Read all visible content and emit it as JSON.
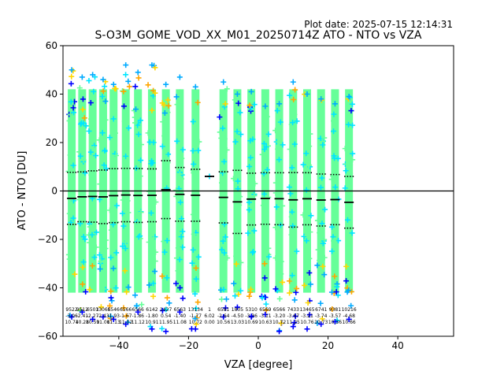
{
  "header": {
    "plot_date": "Plot date: 2025-07-15 12:14:31"
  },
  "chart_data": {
    "type": "scatter",
    "title": "S-O3M_GOME_VOD_XX_M01_20250714Z ATO - NTO vs VZA",
    "xlabel": "VZA [degree]",
    "ylabel": "ATO - NTO [DU]",
    "xlim": [
      -56,
      56
    ],
    "ylim": [
      -60,
      60
    ],
    "x_ticks": [
      -40,
      -20,
      0,
      20,
      40
    ],
    "x_tick_labels": [
      "−40",
      "−20",
      "0",
      "20",
      "40"
    ],
    "y_ticks": [
      -60,
      -40,
      -20,
      0,
      20,
      40,
      60
    ],
    "y_tick_labels": [
      "−60",
      "−40",
      "−20",
      "0",
      "20",
      "40",
      "60"
    ],
    "grid": false,
    "zero_line": 0,
    "density_colors": [
      "#0000ff",
      "#00aaff",
      "#00e5ff",
      "#66ff99",
      "#ffd700",
      "#ffa500"
    ],
    "bins": [
      {
        "vza": -53.5,
        "count": "9522",
        "mean": "-3.06",
        "std": "10.74",
        "min": -52,
        "max": 50
      },
      {
        "vza": -50.5,
        "count": "9512",
        "mean": "-2.41",
        "std": "10.28",
        "min": -50,
        "max": 47
      },
      {
        "vza": -47.5,
        "count": "6503",
        "mean": "-2.27",
        "std": "10.59",
        "min": -53,
        "max": 48
      },
      {
        "vza": -44.5,
        "count": "13065",
        "mean": "-2.43",
        "std": "11.06",
        "min": -52,
        "max": 46
      },
      {
        "vza": -41.5,
        "count": "6546",
        "mean": "-1.93",
        "std": "11.13",
        "min": -53,
        "max": 44
      },
      {
        "vza": -38.0,
        "count": "6566",
        "mean": "-1.67",
        "std": "11.02",
        "min": -55,
        "max": 52
      },
      {
        "vza": -34.5,
        "count": "6566",
        "mean": "-1.86",
        "std": "11.12",
        "min": -50,
        "max": 49
      },
      {
        "vza": -30.5,
        "count": "6142",
        "mean": "-1.80",
        "std": "10.91",
        "min": -57,
        "max": 52
      },
      {
        "vza": -26.5,
        "count": "1427",
        "mean": "0.54",
        "std": "11.95",
        "min": -58,
        "max": 44
      },
      {
        "vza": -22.5,
        "count": "6563",
        "mean": "-1.40",
        "std": "11.08",
        "min": -50,
        "max": 47
      },
      {
        "vza": -18.0,
        "count": "13134",
        "mean": "-1.77",
        "std": "10.72",
        "min": -57,
        "max": 43
      },
      {
        "vza": -14.0,
        "count": "1",
        "mean": "6.02",
        "std": "0.00",
        "min": 6,
        "max": 6
      },
      {
        "vza": -10.0,
        "count": "6581",
        "mean": "-2.64",
        "std": "10.56",
        "min": -52,
        "max": 45
      },
      {
        "vza": -6.0,
        "count": "1805",
        "mean": "-4.50",
        "std": "13.03",
        "min": -48,
        "max": 40
      },
      {
        "vza": -2.0,
        "count": "5310",
        "mean": "-3.36",
        "std": "10.69",
        "min": -52,
        "max": 41
      },
      {
        "vza": 2.0,
        "count": "6569",
        "mean": "-3.11",
        "std": "10.63",
        "min": -51,
        "max": 35
      },
      {
        "vza": 6.0,
        "count": "6566",
        "mean": "-3.20",
        "std": "10.72",
        "min": -58,
        "max": 36
      },
      {
        "vza": 10.0,
        "count": "7433",
        "mean": "-3.67",
        "std": "11.25",
        "min": -56,
        "max": 45
      },
      {
        "vza": 14.0,
        "count": "13465",
        "mean": "-3.21",
        "std": "10.76",
        "min": -57,
        "max": 40
      },
      {
        "vza": 18.0,
        "count": "6741",
        "mean": "-3.74",
        "std": "10.73",
        "min": -55,
        "max": 38
      },
      {
        "vza": 22.0,
        "count": "9381",
        "mean": "-3.57",
        "std": "10.36",
        "min": -54,
        "max": 36
      },
      {
        "vza": 26.0,
        "count": "10216",
        "mean": "-4.68",
        "std": "10.66",
        "min": -53,
        "max": 39
      }
    ]
  }
}
